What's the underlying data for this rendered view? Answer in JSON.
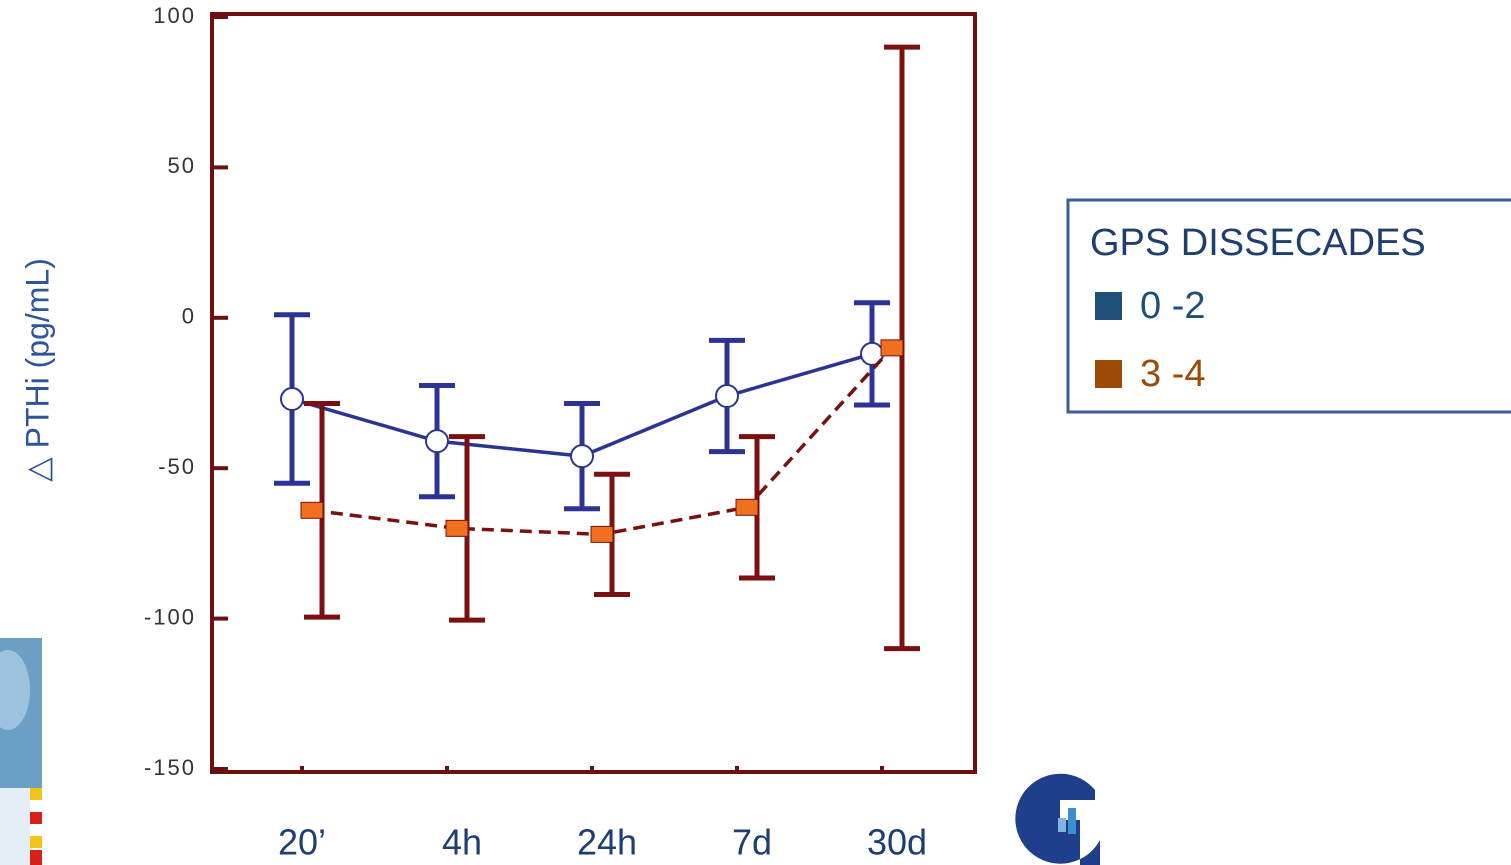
{
  "chart_data": {
    "type": "line-errorbar",
    "y_label": "△ PTHi (pg/mL)",
    "categories": [
      "20’",
      "4h",
      "24h",
      "7d",
      "30d"
    ],
    "series": [
      {
        "name": "0 -2",
        "color": "#2b3494",
        "legend_color": "#1f4e79",
        "marker": "circle",
        "dashed": false,
        "values": [
          -27,
          -41,
          -46,
          -26,
          -12
        ],
        "errors": [
          28,
          18.5,
          17.5,
          18.5,
          17
        ]
      },
      {
        "name": "3 -4",
        "color": "#7a1010",
        "legend_color": "#9c4a06",
        "marker_color": "#f07020",
        "marker": "square",
        "dashed": true,
        "values": [
          -64,
          -70,
          -72,
          -63,
          -10
        ],
        "errors": [
          35.5,
          30.5,
          20,
          23.5,
          100
        ]
      }
    ],
    "legend_title": "GPS DISSECADES",
    "ylim": [
      -151,
      101
    ],
    "yticks": [
      100,
      50,
      0,
      -50,
      -100,
      -150
    ]
  }
}
